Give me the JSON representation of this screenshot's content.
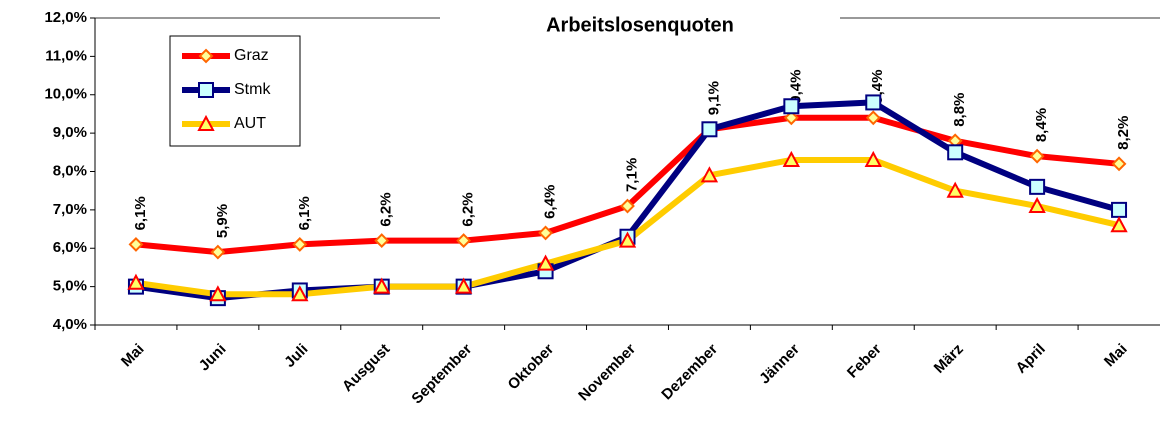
{
  "chart_data": {
    "type": "line",
    "title": "Arbeitslosenquoten",
    "categories": [
      "Mai",
      "Juni",
      "Juli",
      "Ausgust",
      "September",
      "Oktober",
      "November",
      "Dezember",
      "Jänner",
      "Feber",
      "März",
      "April",
      "Mai"
    ],
    "series": [
      {
        "name": "Graz",
        "color": "#ff0000",
        "marker": "diamond",
        "values": [
          6.1,
          5.9,
          6.1,
          6.2,
          6.2,
          6.4,
          7.1,
          9.1,
          9.4,
          9.4,
          8.8,
          8.4,
          8.2
        ],
        "value_labels": [
          "6,1%",
          "5,9%",
          "6,1%",
          "6,2%",
          "6,2%",
          "6,4%",
          "7,1%",
          "9,1%",
          "9,4%",
          "9,4%",
          "8,8%",
          "8,4%",
          "8,2%"
        ]
      },
      {
        "name": "Stmk",
        "color": "#000080",
        "marker": "square",
        "values": [
          5.0,
          4.7,
          4.9,
          5.0,
          5.0,
          5.4,
          6.3,
          9.1,
          9.7,
          9.8,
          8.5,
          7.6,
          7.0
        ]
      },
      {
        "name": "AUT",
        "color": "#ffcc00",
        "marker": "triangle",
        "values": [
          5.1,
          4.8,
          4.8,
          5.0,
          5.0,
          5.6,
          6.2,
          7.9,
          8.3,
          8.3,
          7.5,
          7.1,
          6.6
        ]
      }
    ],
    "ylim": [
      4,
      12
    ],
    "yticks": [
      {
        "value": 4,
        "label": "4,0%"
      },
      {
        "value": 5,
        "label": "5,0%"
      },
      {
        "value": 6,
        "label": "6,0%"
      },
      {
        "value": 7,
        "label": "7,0%"
      },
      {
        "value": 8,
        "label": "8,0%"
      },
      {
        "value": 9,
        "label": "9,0%"
      },
      {
        "value": 10,
        "label": "10,0%"
      },
      {
        "value": 11,
        "label": "11,0%"
      },
      {
        "value": 12,
        "label": "12,0%"
      }
    ],
    "legend": "upper left"
  }
}
